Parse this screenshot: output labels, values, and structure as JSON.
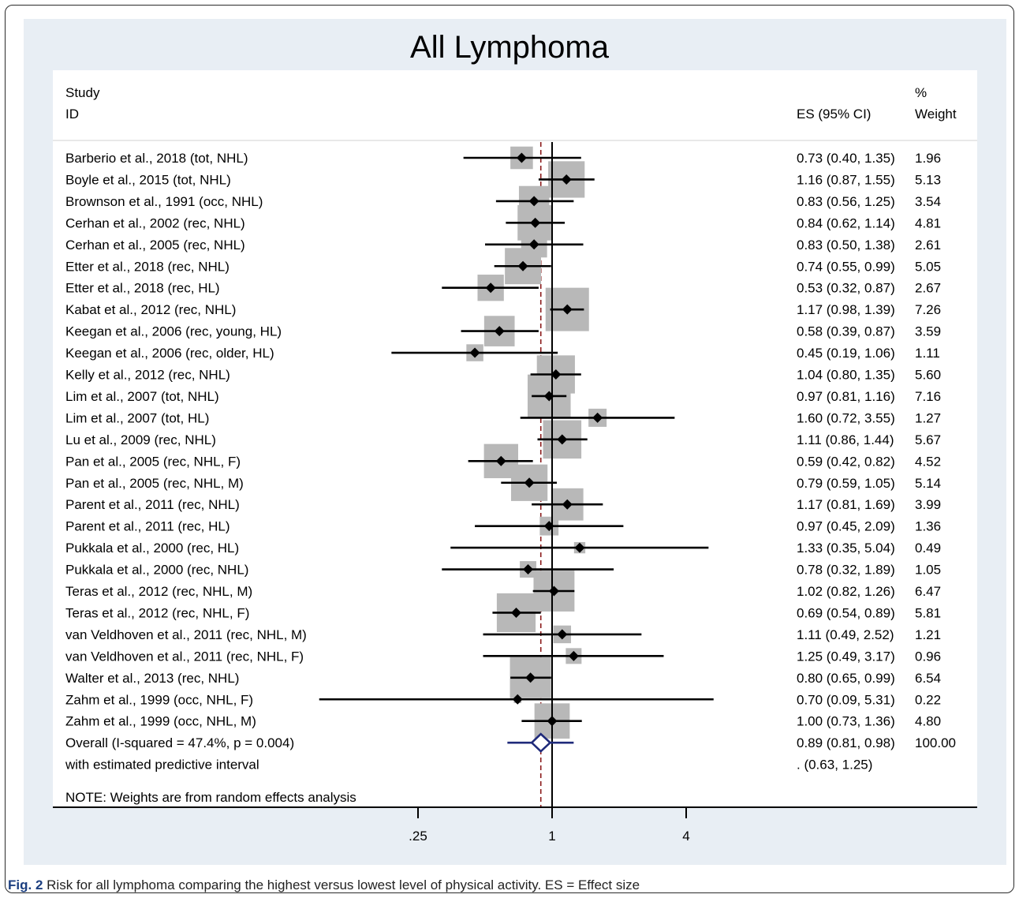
{
  "figure": {
    "caption_label": "Fig. 2",
    "caption_text": "Risk for all lymphoma comparing the highest versus lowest level of physical activity. ES = Effect size"
  },
  "colors": {
    "panel_bg": "#e8eef4",
    "weight_box": "#b8b8b8",
    "overall_diamond": "#1f2a7a",
    "null_line": "#000000",
    "overall_line": "#8b1a1a"
  },
  "chart_data": {
    "type": "forest",
    "title": "All Lymphoma",
    "header": {
      "study_line1": "Study",
      "study_line2": "ID",
      "es_label": "ES (95% CI)",
      "weight_line1": "%",
      "weight_line2": "Weight"
    },
    "x_scale": "log",
    "xlim": [
      0.17,
      7.5
    ],
    "xticks": [
      0.25,
      1,
      4
    ],
    "xtick_labels": [
      ".25",
      "1",
      "4"
    ],
    "studies": [
      {
        "label": "Barberio et al., 2018 (tot, NHL)",
        "es": 0.73,
        "lo": 0.4,
        "hi": 1.35,
        "es_text": "0.73 (0.40, 1.35)",
        "weight": 1.96,
        "weight_text": "1.96"
      },
      {
        "label": "Boyle et al., 2015 (tot, NHL)",
        "es": 1.16,
        "lo": 0.87,
        "hi": 1.55,
        "es_text": "1.16 (0.87, 1.55)",
        "weight": 5.13,
        "weight_text": "5.13"
      },
      {
        "label": "Brownson et al., 1991 (occ, NHL)",
        "es": 0.83,
        "lo": 0.56,
        "hi": 1.25,
        "es_text": "0.83 (0.56, 1.25)",
        "weight": 3.54,
        "weight_text": "3.54"
      },
      {
        "label": "Cerhan et al., 2002 (rec, NHL)",
        "es": 0.84,
        "lo": 0.62,
        "hi": 1.14,
        "es_text": "0.84 (0.62, 1.14)",
        "weight": 4.81,
        "weight_text": "4.81"
      },
      {
        "label": "Cerhan et al., 2005 (rec, NHL)",
        "es": 0.83,
        "lo": 0.5,
        "hi": 1.38,
        "es_text": "0.83 (0.50, 1.38)",
        "weight": 2.61,
        "weight_text": "2.61"
      },
      {
        "label": "Etter et al., 2018 (rec, NHL)",
        "es": 0.74,
        "lo": 0.55,
        "hi": 0.99,
        "es_text": "0.74 (0.55, 0.99)",
        "weight": 5.05,
        "weight_text": "5.05"
      },
      {
        "label": "Etter et al., 2018 (rec, HL)",
        "es": 0.53,
        "lo": 0.32,
        "hi": 0.87,
        "es_text": "0.53 (0.32, 0.87)",
        "weight": 2.67,
        "weight_text": "2.67"
      },
      {
        "label": "Kabat et al., 2012 (rec, NHL)",
        "es": 1.17,
        "lo": 0.98,
        "hi": 1.39,
        "es_text": "1.17 (0.98, 1.39)",
        "weight": 7.26,
        "weight_text": "7.26"
      },
      {
        "label": "Keegan et al., 2006 (rec, young, HL)",
        "es": 0.58,
        "lo": 0.39,
        "hi": 0.87,
        "es_text": "0.58 (0.39, 0.87)",
        "weight": 3.59,
        "weight_text": "3.59"
      },
      {
        "label": "Keegan et al., 2006 (rec, older, HL)",
        "es": 0.45,
        "lo": 0.19,
        "hi": 1.06,
        "es_text": "0.45 (0.19, 1.06)",
        "weight": 1.11,
        "weight_text": "1.11"
      },
      {
        "label": "Kelly et al., 2012 (rec, NHL)",
        "es": 1.04,
        "lo": 0.8,
        "hi": 1.35,
        "es_text": "1.04 (0.80, 1.35)",
        "weight": 5.6,
        "weight_text": "5.60"
      },
      {
        "label": "Lim et al., 2007 (tot, NHL)",
        "es": 0.97,
        "lo": 0.81,
        "hi": 1.16,
        "es_text": "0.97 (0.81, 1.16)",
        "weight": 7.16,
        "weight_text": "7.16"
      },
      {
        "label": "Lim et al., 2007 (tot, HL)",
        "es": 1.6,
        "lo": 0.72,
        "hi": 3.55,
        "es_text": "1.60 (0.72, 3.55)",
        "weight": 1.27,
        "weight_text": "1.27"
      },
      {
        "label": "Lu et al., 2009 (rec, NHL)",
        "es": 1.11,
        "lo": 0.86,
        "hi": 1.44,
        "es_text": "1.11 (0.86, 1.44)",
        "weight": 5.67,
        "weight_text": "5.67"
      },
      {
        "label": "Pan et al., 2005 (rec, NHL, F)",
        "es": 0.59,
        "lo": 0.42,
        "hi": 0.82,
        "es_text": "0.59 (0.42, 0.82)",
        "weight": 4.52,
        "weight_text": "4.52"
      },
      {
        "label": "Pan et al., 2005 (rec, NHL, M)",
        "es": 0.79,
        "lo": 0.59,
        "hi": 1.05,
        "es_text": "0.79 (0.59, 1.05)",
        "weight": 5.14,
        "weight_text": "5.14"
      },
      {
        "label": "Parent et al., 2011 (rec, NHL)",
        "es": 1.17,
        "lo": 0.81,
        "hi": 1.69,
        "es_text": "1.17 (0.81, 1.69)",
        "weight": 3.99,
        "weight_text": "3.99"
      },
      {
        "label": "Parent et al., 2011 (rec, HL)",
        "es": 0.97,
        "lo": 0.45,
        "hi": 2.09,
        "es_text": "0.97 (0.45, 2.09)",
        "weight": 1.36,
        "weight_text": "1.36"
      },
      {
        "label": "Pukkala et al., 2000 (rec, HL)",
        "es": 1.33,
        "lo": 0.35,
        "hi": 5.04,
        "es_text": "1.33 (0.35, 5.04)",
        "weight": 0.49,
        "weight_text": "0.49"
      },
      {
        "label": "Pukkala et al., 2000 (rec, NHL)",
        "es": 0.78,
        "lo": 0.32,
        "hi": 1.89,
        "es_text": "0.78 (0.32, 1.89)",
        "weight": 1.05,
        "weight_text": "1.05"
      },
      {
        "label": "Teras et al., 2012 (rec, NHL, M)",
        "es": 1.02,
        "lo": 0.82,
        "hi": 1.26,
        "es_text": "1.02 (0.82, 1.26)",
        "weight": 6.47,
        "weight_text": "6.47"
      },
      {
        "label": "Teras et al., 2012 (rec, NHL, F)",
        "es": 0.69,
        "lo": 0.54,
        "hi": 0.89,
        "es_text": "0.69 (0.54, 0.89)",
        "weight": 5.81,
        "weight_text": "5.81"
      },
      {
        "label": "van Veldhoven et al., 2011 (rec, NHL, M)",
        "es": 1.11,
        "lo": 0.49,
        "hi": 2.52,
        "es_text": "1.11 (0.49, 2.52)",
        "weight": 1.21,
        "weight_text": "1.21"
      },
      {
        "label": "van Veldhoven et al., 2011 (rec, NHL, F)",
        "es": 1.25,
        "lo": 0.49,
        "hi": 3.17,
        "es_text": "1.25 (0.49, 3.17)",
        "weight": 0.96,
        "weight_text": "0.96"
      },
      {
        "label": "Walter et al., 2013 (rec, NHL)",
        "es": 0.8,
        "lo": 0.65,
        "hi": 0.99,
        "es_text": "0.80 (0.65, 0.99)",
        "weight": 6.54,
        "weight_text": "6.54"
      },
      {
        "label": "Zahm et al., 1999 (occ, NHL, F)",
        "es": 0.7,
        "lo": 0.09,
        "hi": 5.31,
        "es_text": "0.70 (0.09, 5.31)",
        "weight": 0.22,
        "weight_text": "0.22"
      },
      {
        "label": "Zahm et al., 1999 (occ, NHL, M)",
        "es": 1.0,
        "lo": 0.73,
        "hi": 1.36,
        "es_text": "1.00 (0.73, 1.36)",
        "weight": 4.8,
        "weight_text": "4.80"
      }
    ],
    "overall": {
      "label": "Overall  (I-squared = 47.4%, p = 0.004)",
      "es": 0.89,
      "lo": 0.81,
      "hi": 0.98,
      "es_text": "0.89 (0.81, 0.98)",
      "weight_text": "100.00"
    },
    "predictive": {
      "label": "with estimated predictive interval",
      "lo": 0.63,
      "hi": 1.25,
      "es_text": ".     (0.63, 1.25)"
    },
    "note": "NOTE: Weights are from random effects analysis"
  }
}
